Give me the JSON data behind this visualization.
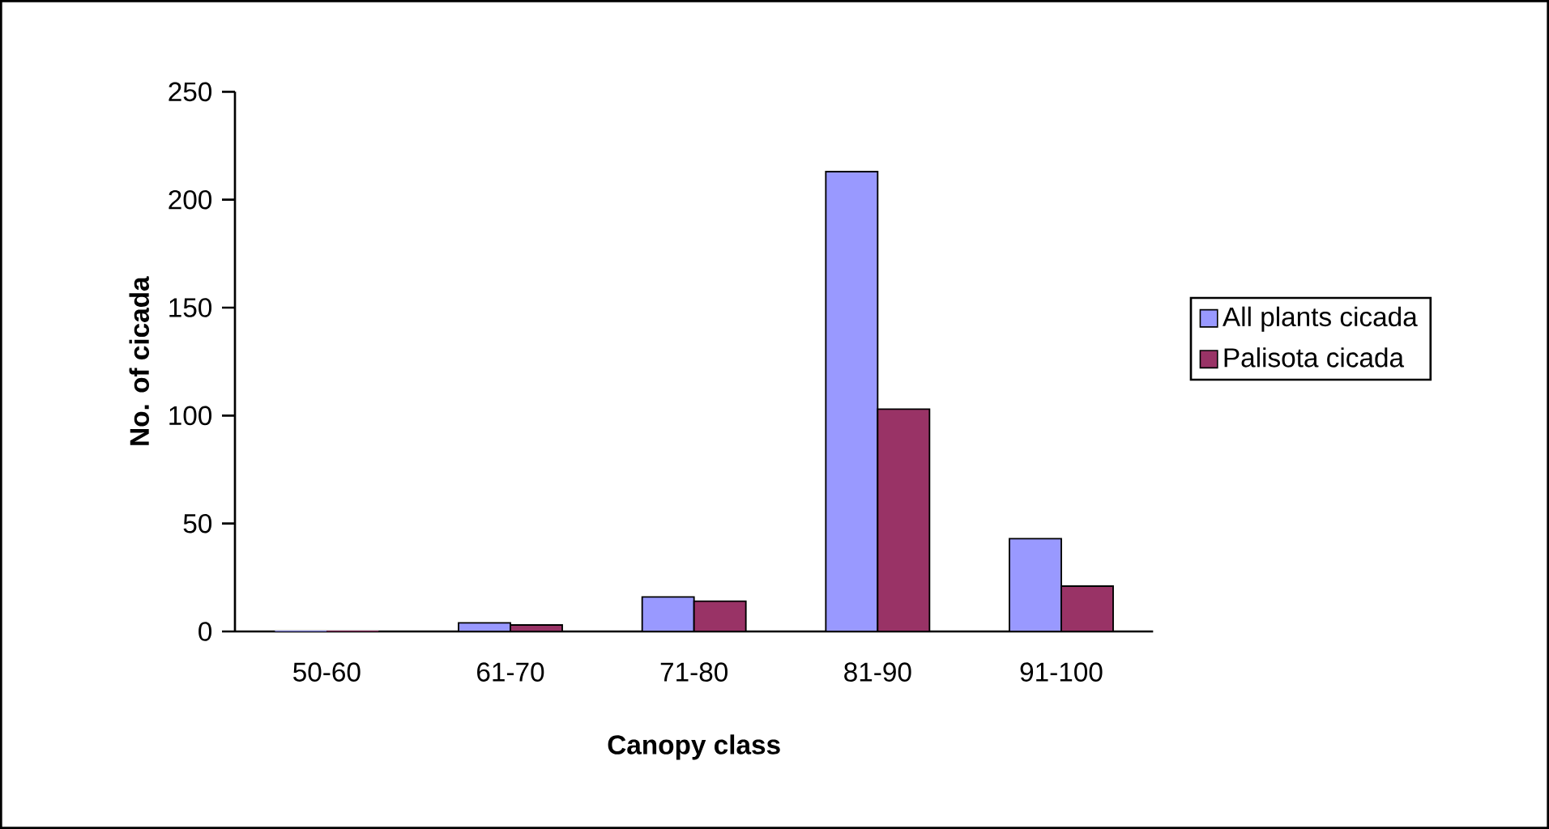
{
  "chart_data": {
    "type": "bar",
    "xlabel": "Canopy class",
    "ylabel": "No. of cicada",
    "categories": [
      "50-60",
      "61-70",
      "71-80",
      "81-90",
      "91-100"
    ],
    "series": [
      {
        "name": "All plants cicada",
        "color": "#9999ff",
        "values": [
          0,
          4,
          16,
          213,
          43
        ]
      },
      {
        "name": "Palisota cicada",
        "color": "#993366",
        "values": [
          0,
          3,
          14,
          103,
          21
        ]
      }
    ],
    "ylim": [
      0,
      250
    ],
    "yticks": [
      0,
      50,
      100,
      150,
      200,
      250
    ],
    "grid": false,
    "legend": "right"
  }
}
